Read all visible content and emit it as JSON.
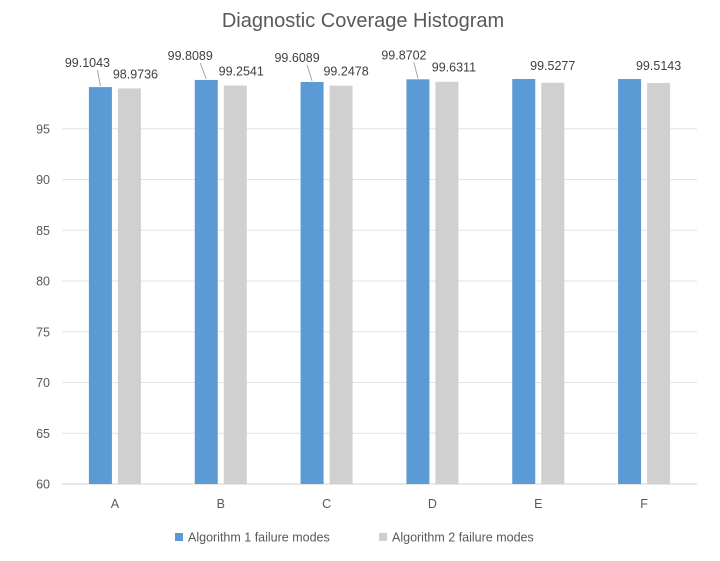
{
  "chart_data": {
    "type": "bar",
    "title": "Diagnostic Coverage Histogram",
    "xlabel": "",
    "ylabel": "",
    "categories": [
      "A",
      "B",
      "C",
      "D",
      "E",
      "F"
    ],
    "ylim": [
      60,
      100
    ],
    "yticks": [
      60,
      65,
      70,
      75,
      80,
      85,
      90,
      95
    ],
    "grid": true,
    "legend_position": "bottom",
    "series": [
      {
        "name": "Algorithm 1 failure modes",
        "color": "#5b9bd5",
        "values": [
          99.1043,
          99.8089,
          99.6089,
          99.8702,
          99.9,
          99.9
        ],
        "labels": [
          "99.1043",
          "99.8089",
          "99.6089",
          "99.8702",
          "",
          ""
        ]
      },
      {
        "name": "Algorithm 2 failure modes",
        "color": "#d0d0d0",
        "values": [
          98.9736,
          99.2541,
          99.2478,
          99.6311,
          99.5277,
          99.5143
        ],
        "labels": [
          "98.9736",
          "99.2541",
          "99.2478",
          "99.6311",
          "99.5277",
          "99.5143"
        ]
      }
    ]
  }
}
